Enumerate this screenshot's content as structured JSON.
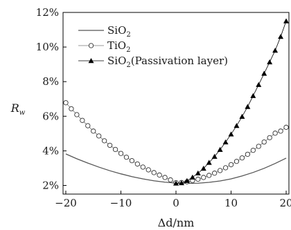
{
  "chart_data": {
    "type": "line",
    "xlabel": "Δd/nm",
    "ylabel_main": "R",
    "ylabel_sub": "w",
    "xlim": [
      -20.5,
      20.5
    ],
    "ylim": [
      1.5,
      12
    ],
    "xticks": [
      -20,
      -10,
      0,
      10,
      20
    ],
    "xtick_labels": [
      "−20",
      "−10",
      "0",
      "10",
      "20"
    ],
    "yticks": [
      2,
      4,
      6,
      8,
      10,
      12
    ],
    "ytick_labels": [
      "2%",
      "4%",
      "6%",
      "8%",
      "10%",
      "12%"
    ],
    "grid": false,
    "legend_position": "top-left",
    "series": [
      {
        "name": "SiO₂",
        "legend_main": "SiO",
        "legend_sub": "2",
        "legend_rest": "",
        "marker": "none",
        "color": "#555555",
        "x": [
          -20,
          -18,
          -16,
          -14,
          -12,
          -10,
          -8,
          -6,
          -4,
          -2,
          0,
          2,
          4,
          6,
          8,
          10,
          12,
          14,
          16,
          18,
          20
        ],
        "y": [
          3.82,
          3.54,
          3.29,
          3.06,
          2.85,
          2.67,
          2.51,
          2.38,
          2.27,
          2.19,
          2.14,
          2.12,
          2.13,
          2.18,
          2.26,
          2.38,
          2.55,
          2.75,
          2.99,
          3.27,
          3.58
        ]
      },
      {
        "name": "TiO₂",
        "legend_main": "TiO",
        "legend_sub": "2",
        "legend_rest": "",
        "marker": "circle-open",
        "color": "#777777",
        "x": [
          -20,
          -19,
          -18,
          -17,
          -16,
          -15,
          -14,
          -13,
          -12,
          -11,
          -10,
          -9,
          -8,
          -7,
          -6,
          -5,
          -4,
          -3,
          -2,
          -1,
          0,
          1,
          2,
          3,
          4,
          5,
          6,
          7,
          8,
          9,
          10,
          11,
          12,
          13,
          14,
          15,
          16,
          17,
          18,
          19,
          20
        ],
        "y": [
          6.78,
          6.43,
          6.09,
          5.76,
          5.45,
          5.14,
          4.86,
          4.58,
          4.32,
          4.08,
          3.85,
          3.63,
          3.43,
          3.24,
          3.06,
          2.9,
          2.74,
          2.6,
          2.46,
          2.32,
          2.16,
          2.17,
          2.21,
          2.28,
          2.36,
          2.46,
          2.58,
          2.71,
          2.86,
          3.02,
          3.2,
          3.39,
          3.59,
          3.8,
          4.03,
          4.26,
          4.51,
          4.76,
          5.02,
          5.14,
          5.36
        ]
      },
      {
        "name": "SiO₂(Passivation layer)",
        "legend_main": "SiO",
        "legend_sub": "2",
        "legend_rest": "(Passivation layer)",
        "marker": "triangle-filled",
        "color": "#000000",
        "x": [
          0,
          1,
          2,
          3,
          4,
          5,
          6,
          7,
          8,
          9,
          10,
          11,
          12,
          13,
          14,
          15,
          16,
          17,
          18,
          19,
          20
        ],
        "y": [
          2.12,
          2.14,
          2.27,
          2.47,
          2.71,
          2.98,
          3.32,
          3.67,
          4.07,
          4.5,
          4.96,
          5.45,
          5.98,
          6.55,
          7.18,
          7.82,
          8.47,
          9.13,
          9.8,
          10.6,
          11.5
        ]
      }
    ]
  }
}
